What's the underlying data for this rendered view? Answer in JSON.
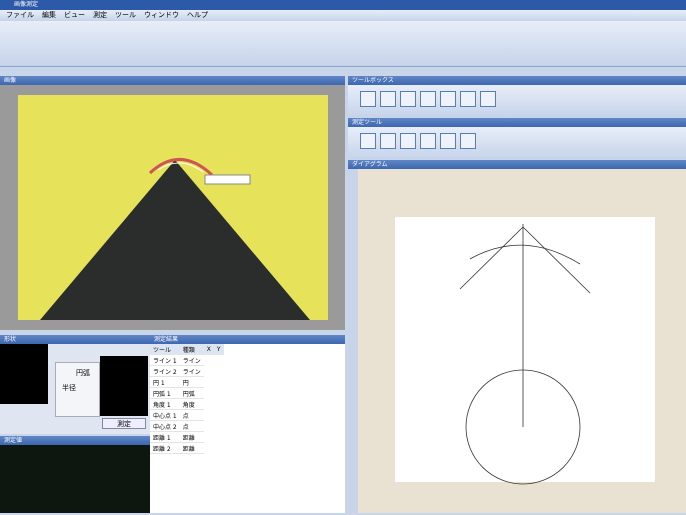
{
  "window": {
    "title": "画像測定"
  },
  "menu": [
    "ファイル",
    "編集",
    "ビュー",
    "測定",
    "ツール",
    "ウィンドウ",
    "ヘルプ"
  ],
  "panels": {
    "image": "画像",
    "toolbox": "ツールボックス",
    "measure_tools": "測定ツール",
    "diagram": "ダイアグラム",
    "results": "測定結果",
    "shape": "形状",
    "value": "測定値"
  },
  "popup": {
    "shape": "円弧",
    "field": "半径",
    "button": "測定"
  },
  "table": {
    "header": [
      "ツール",
      "種類",
      "X",
      "Y"
    ],
    "rows": [
      [
        "ライン 1",
        "ライン"
      ],
      [
        "ライン 2",
        "ライン"
      ],
      [
        "円 1",
        "円"
      ],
      [
        "円弧 1",
        "円弧"
      ],
      [
        "角度 1",
        "角度"
      ],
      [
        "中心点 1",
        "点"
      ],
      [
        "中心点 2",
        "点"
      ],
      [
        "距離 1",
        "距離"
      ],
      [
        "距離 2",
        "距離"
      ]
    ]
  }
}
